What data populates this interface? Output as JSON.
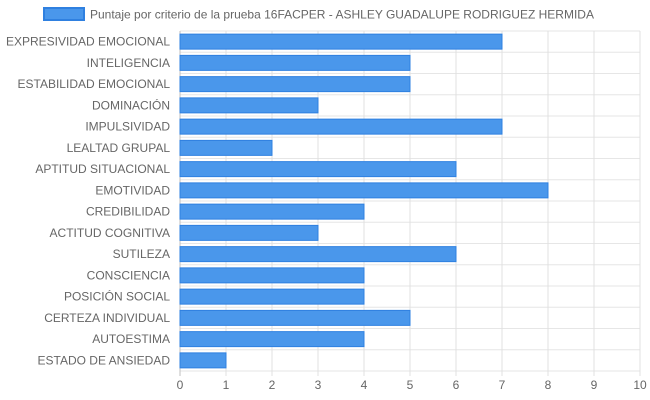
{
  "chart_data": {
    "type": "bar",
    "orientation": "horizontal",
    "categories": [
      "EXPRESIVIDAD EMOCIONAL",
      "INTELIGENCIA",
      "ESTABILIDAD EMOCIONAL",
      "DOMINACIÓN",
      "IMPULSIVIDAD",
      "LEALTAD GRUPAL",
      "APTITUD SITUACIONAL",
      "EMOTIVIDAD",
      "CREDIBILIDAD",
      "ACTITUD COGNITIVA",
      "SUTILEZA",
      "CONSCIENCIA",
      "POSICIÓN SOCIAL",
      "CERTEZA INDIVIDUAL",
      "AUTOESTIMA",
      "ESTADO DE ANSIEDAD"
    ],
    "series": [
      {
        "name": "Puntaje por criterio de la prueba 16FACPER - ASHLEY GUADALUPE RODRIGUEZ HERMIDA",
        "values": [
          7,
          5,
          5,
          3,
          7,
          2,
          6,
          8,
          4,
          3,
          6,
          4,
          4,
          5,
          4,
          1
        ],
        "color": "#4a97eb",
        "border_color": "#2f80e0"
      }
    ],
    "xlim": [
      0,
      10
    ],
    "x_ticks": [
      "0",
      "1",
      "2",
      "3",
      "4",
      "5",
      "6",
      "7",
      "8",
      "9",
      "10"
    ],
    "grid": true,
    "legend_position": "top"
  }
}
